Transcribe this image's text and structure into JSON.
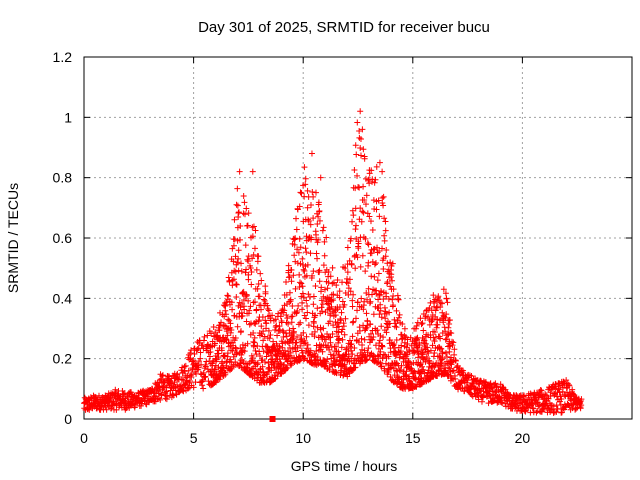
{
  "chart_data": {
    "type": "scatter",
    "title": "Day 301 of 2025, SRMTID for receiver bucu",
    "xlabel": "GPS time / hours",
    "ylabel": "SRMTID / TECUs",
    "xlim": [
      0,
      25
    ],
    "ylim": [
      0,
      1.2
    ],
    "xticks": [
      "0",
      "5",
      "10",
      "15",
      "20"
    ],
    "yticks": [
      "0",
      "0.2",
      "0.4",
      "0.6",
      "0.8",
      "1",
      "1.2"
    ],
    "grid": true,
    "marker": "+",
    "color": "#ff0000",
    "series": [
      {
        "name": "SRMTID",
        "envelope_hours": [
          0,
          0.5,
          1,
          1.5,
          2,
          2.5,
          3,
          3.5,
          4,
          4.5,
          5,
          5.5,
          6,
          6.5,
          7,
          7.5,
          8,
          8.5,
          9,
          9.5,
          10,
          10.5,
          11,
          11.5,
          12,
          12.5,
          13,
          13.5,
          14,
          14.5,
          15,
          15.5,
          16,
          16.5,
          17,
          17.5,
          18,
          18.5,
          19,
          19.5,
          20,
          20.5,
          21,
          21.5,
          22,
          22.5
        ],
        "envelope_low": [
          0.02,
          0.03,
          0.03,
          0.03,
          0.03,
          0.04,
          0.05,
          0.06,
          0.07,
          0.09,
          0.1,
          0.1,
          0.12,
          0.15,
          0.18,
          0.15,
          0.12,
          0.12,
          0.15,
          0.18,
          0.2,
          0.18,
          0.17,
          0.15,
          0.14,
          0.18,
          0.2,
          0.18,
          0.13,
          0.1,
          0.1,
          0.12,
          0.14,
          0.15,
          0.1,
          0.08,
          0.06,
          0.05,
          0.05,
          0.03,
          0.02,
          0.02,
          0.02,
          0.02,
          0.02,
          0.03
        ],
        "envelope_high": [
          0.07,
          0.08,
          0.08,
          0.1,
          0.09,
          0.09,
          0.1,
          0.15,
          0.14,
          0.18,
          0.25,
          0.28,
          0.32,
          0.4,
          0.8,
          0.82,
          0.55,
          0.35,
          0.38,
          0.6,
          0.88,
          0.8,
          0.62,
          0.45,
          0.55,
          1.02,
          0.86,
          0.85,
          0.58,
          0.32,
          0.3,
          0.35,
          0.42,
          0.44,
          0.18,
          0.15,
          0.13,
          0.12,
          0.12,
          0.08,
          0.08,
          0.09,
          0.1,
          0.12,
          0.13,
          0.07
        ],
        "peak_points": [
          {
            "x": 7.1,
            "y": 0.82
          },
          {
            "x": 7.7,
            "y": 0.82
          },
          {
            "x": 10.4,
            "y": 0.88
          },
          {
            "x": 10.8,
            "y": 0.8
          },
          {
            "x": 12.6,
            "y": 1.02
          },
          {
            "x": 12.7,
            "y": 0.96
          },
          {
            "x": 12.8,
            "y": 0.87
          },
          {
            "x": 13.5,
            "y": 0.85
          },
          {
            "x": 13.6,
            "y": 0.82
          }
        ],
        "outlier_points": [
          {
            "x": 8.6,
            "y": 0.0
          }
        ]
      }
    ]
  }
}
